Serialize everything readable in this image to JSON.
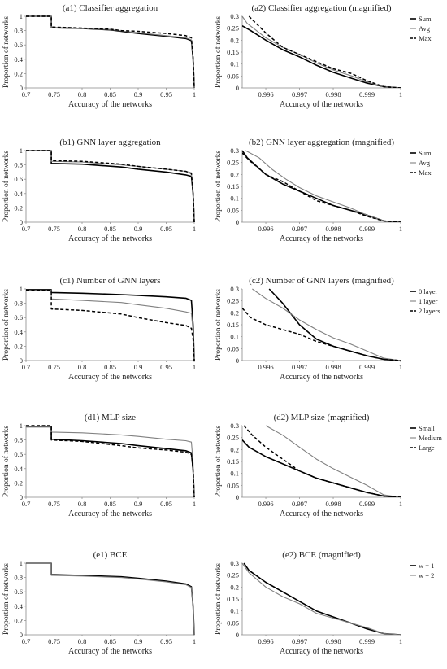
{
  "figure": {
    "x_label": "Accuracy of the networks",
    "y_label": "Proportion of networks"
  },
  "styles": {
    "series_colors": [
      "#000000",
      "#808080",
      "#000000"
    ],
    "series_dash": [
      "none",
      "none",
      "4 2.5"
    ],
    "series_widths": [
      1.6,
      1.1,
      1.5
    ]
  },
  "chart_data": [
    {
      "type": "line",
      "row": 0,
      "title": "(a1) Classifier aggregation",
      "legend": null,
      "xlim": [
        0.7,
        1
      ],
      "ylim": [
        0,
        1
      ],
      "xticks": [
        "0.7",
        "0.75",
        "0.8",
        "0.85",
        "0.9",
        "0.95",
        "1"
      ],
      "yticks": [
        "0",
        "0.2",
        "0.4",
        "0.6",
        "0.8",
        "1"
      ],
      "series": [
        {
          "x": [
            0.7,
            0.745,
            0.745,
            0.8,
            0.85,
            0.87,
            0.9,
            0.95,
            0.985,
            0.995,
            0.998,
            1.0
          ],
          "y": [
            1.0,
            1.0,
            0.84,
            0.83,
            0.81,
            0.79,
            0.76,
            0.72,
            0.69,
            0.66,
            0.4,
            0.0
          ]
        },
        {
          "x": [
            0.7,
            0.745,
            0.745,
            0.8,
            0.85,
            0.87,
            0.9,
            0.95,
            0.985,
            0.995,
            0.998,
            1.0
          ],
          "y": [
            1.0,
            1.0,
            0.84,
            0.83,
            0.815,
            0.795,
            0.77,
            0.73,
            0.7,
            0.67,
            0.4,
            0.0
          ]
        },
        {
          "x": [
            0.7,
            0.745,
            0.745,
            0.8,
            0.85,
            0.87,
            0.9,
            0.95,
            0.985,
            0.995,
            0.998,
            1.0
          ],
          "y": [
            1.0,
            1.0,
            0.85,
            0.835,
            0.82,
            0.8,
            0.79,
            0.76,
            0.73,
            0.7,
            0.42,
            0.0
          ]
        }
      ]
    },
    {
      "type": "line",
      "row": 0,
      "title": "(a2) Classifier aggregation (magnified)",
      "legend": [
        "Sum",
        "Avg",
        "Max"
      ],
      "xlim": [
        0.9953,
        1
      ],
      "ylim": [
        0,
        0.3
      ],
      "xticks": [
        "0.996",
        "0.997",
        "0.998",
        "0.999",
        "1"
      ],
      "yticks": [
        "0",
        "0.05",
        "0.1",
        "0.15",
        "0.2",
        "0.25",
        "0.3"
      ],
      "series": [
        {
          "x": [
            0.9953,
            0.99555,
            0.996,
            0.9965,
            0.997,
            0.9975,
            0.998,
            0.99855,
            0.999,
            0.9995,
            1.0
          ],
          "y": [
            0.26,
            0.24,
            0.2,
            0.16,
            0.13,
            0.095,
            0.065,
            0.04,
            0.02,
            0.005,
            0.0
          ]
        },
        {
          "x": [
            0.9953,
            0.99545,
            0.996,
            0.9965,
            0.997,
            0.9975,
            0.998,
            0.99855,
            0.999,
            0.9995,
            1.0
          ],
          "y": [
            0.3,
            0.27,
            0.21,
            0.17,
            0.14,
            0.105,
            0.075,
            0.05,
            0.025,
            0.005,
            0.0
          ]
        },
        {
          "x": [
            0.9955,
            0.996,
            0.9965,
            0.997,
            0.9975,
            0.998,
            0.99855,
            0.999,
            0.9995,
            1.0
          ],
          "y": [
            0.3,
            0.23,
            0.17,
            0.14,
            0.11,
            0.08,
            0.06,
            0.03,
            0.005,
            0.0
          ]
        }
      ]
    },
    {
      "type": "line",
      "row": 1,
      "title": "(b1) GNN layer aggregation",
      "legend": null,
      "xlim": [
        0.7,
        1
      ],
      "ylim": [
        0,
        1
      ],
      "xticks": [
        "0.7",
        "0.75",
        "0.8",
        "0.85",
        "0.9",
        "0.95",
        "1"
      ],
      "yticks": [
        "0",
        "0.2",
        "0.4",
        "0.6",
        "0.8",
        "1"
      ],
      "series": [
        {
          "x": [
            0.7,
            0.745,
            0.745,
            0.8,
            0.87,
            0.9,
            0.95,
            0.985,
            0.995,
            0.998,
            1.0
          ],
          "y": [
            1.0,
            1.0,
            0.82,
            0.81,
            0.77,
            0.74,
            0.7,
            0.66,
            0.64,
            0.4,
            0.0
          ]
        },
        {
          "x": [
            0.7,
            0.745,
            0.745,
            0.8,
            0.87,
            0.9,
            0.95,
            0.985,
            0.995,
            0.998,
            1.0
          ],
          "y": [
            1.0,
            1.0,
            0.85,
            0.84,
            0.8,
            0.78,
            0.74,
            0.71,
            0.69,
            0.42,
            0.0
          ]
        },
        {
          "x": [
            0.7,
            0.745,
            0.745,
            0.8,
            0.87,
            0.9,
            0.95,
            0.985,
            0.995,
            0.998,
            1.0
          ],
          "y": [
            1.0,
            1.0,
            0.86,
            0.85,
            0.81,
            0.78,
            0.74,
            0.71,
            0.68,
            0.41,
            0.0
          ]
        }
      ]
    },
    {
      "type": "line",
      "row": 1,
      "title": "(b2) GNN layer aggregation (magnified)",
      "legend": [
        "Sum",
        "Avg",
        "Max"
      ],
      "xlim": [
        0.9953,
        1
      ],
      "ylim": [
        0,
        0.3
      ],
      "xticks": [
        "0.996",
        "0.997",
        "0.998",
        "0.999",
        "1"
      ],
      "yticks": [
        "0",
        "0.05",
        "0.1",
        "0.15",
        "0.2",
        "0.25",
        "0.3"
      ],
      "series": [
        {
          "x": [
            0.9953,
            0.99545,
            0.996,
            0.9965,
            0.997,
            0.9975,
            0.998,
            0.9985,
            0.999,
            0.9995,
            1.0
          ],
          "y": [
            0.3,
            0.27,
            0.2,
            0.16,
            0.13,
            0.1,
            0.07,
            0.05,
            0.03,
            0.005,
            0.0
          ]
        },
        {
          "x": [
            0.9954,
            0.9958,
            0.9962,
            0.9966,
            0.997,
            0.9975,
            0.998,
            0.9985,
            0.999,
            0.9995,
            1.0
          ],
          "y": [
            0.3,
            0.27,
            0.22,
            0.18,
            0.145,
            0.11,
            0.085,
            0.06,
            0.03,
            0.005,
            0.0
          ]
        },
        {
          "x": [
            0.9953,
            0.9955,
            0.996,
            0.9965,
            0.997,
            0.9975,
            0.998,
            0.9985,
            0.999,
            0.9995,
            1.0
          ],
          "y": [
            0.29,
            0.26,
            0.2,
            0.17,
            0.13,
            0.09,
            0.07,
            0.05,
            0.025,
            0.005,
            0.0
          ]
        }
      ]
    },
    {
      "type": "line",
      "row": 2,
      "title": "(c1) Number of GNN layers",
      "legend": null,
      "xlim": [
        0.7,
        1
      ],
      "ylim": [
        0,
        1
      ],
      "xticks": [
        "0.7",
        "0.75",
        "0.8",
        "0.85",
        "0.9",
        "0.95",
        "1"
      ],
      "yticks": [
        "0",
        "0.2",
        "0.4",
        "0.6",
        "0.8",
        "1"
      ],
      "series": [
        {
          "x": [
            0.7,
            0.745,
            0.745,
            0.8,
            0.87,
            0.9,
            0.95,
            0.985,
            0.995,
            0.998,
            1.0
          ],
          "y": [
            0.99,
            0.99,
            0.95,
            0.94,
            0.92,
            0.91,
            0.89,
            0.87,
            0.84,
            0.5,
            0.0
          ]
        },
        {
          "x": [
            0.7,
            0.745,
            0.745,
            0.8,
            0.87,
            0.9,
            0.95,
            0.985,
            0.995,
            0.998,
            1.0
          ],
          "y": [
            0.98,
            0.98,
            0.86,
            0.84,
            0.81,
            0.78,
            0.73,
            0.68,
            0.66,
            0.4,
            0.0
          ]
        },
        {
          "x": [
            0.7,
            0.745,
            0.745,
            0.8,
            0.87,
            0.9,
            0.95,
            0.985,
            0.995,
            0.998,
            1.0
          ],
          "y": [
            0.98,
            0.98,
            0.72,
            0.7,
            0.65,
            0.6,
            0.53,
            0.49,
            0.45,
            0.3,
            0.0
          ]
        }
      ]
    },
    {
      "type": "line",
      "row": 2,
      "title": "(c2) Number of GNN layers (magnified)",
      "legend": [
        "0 layer",
        "1 layer",
        "2 layers"
      ],
      "xlim": [
        0.9953,
        1
      ],
      "ylim": [
        0,
        0.3
      ],
      "xticks": [
        "0.996",
        "0.997",
        "0.998",
        "0.999",
        "1"
      ],
      "yticks": [
        "0",
        "0.05",
        "0.1",
        "0.15",
        "0.2",
        "0.25",
        "0.3"
      ],
      "series": [
        {
          "x": [
            0.9961,
            0.9965,
            0.997,
            0.9975,
            0.998,
            0.9985,
            0.999,
            0.9995,
            1.0
          ],
          "y": [
            0.3,
            0.24,
            0.15,
            0.09,
            0.06,
            0.04,
            0.02,
            0.005,
            0.0
          ]
        },
        {
          "x": [
            0.9956,
            0.996,
            0.9965,
            0.997,
            0.9975,
            0.998,
            0.9985,
            0.999,
            0.9995,
            1.0
          ],
          "y": [
            0.3,
            0.26,
            0.22,
            0.17,
            0.13,
            0.095,
            0.07,
            0.04,
            0.01,
            0.0
          ]
        },
        {
          "x": [
            0.9953,
            0.99555,
            0.996,
            0.9965,
            0.997,
            0.9975,
            0.998,
            0.9985,
            0.999,
            0.9995,
            1.0
          ],
          "y": [
            0.22,
            0.18,
            0.15,
            0.13,
            0.11,
            0.08,
            0.06,
            0.04,
            0.02,
            0.005,
            0.0
          ]
        }
      ]
    },
    {
      "type": "line",
      "row": 3,
      "title": "(d1) MLP size",
      "legend": null,
      "xlim": [
        0.7,
        1
      ],
      "ylim": [
        0,
        1
      ],
      "xticks": [
        "0.7",
        "0.75",
        "0.8",
        "0.85",
        "0.9",
        "0.95",
        "1"
      ],
      "yticks": [
        "0",
        "0.2",
        "0.4",
        "0.6",
        "0.8",
        "1"
      ],
      "series": [
        {
          "x": [
            0.7,
            0.745,
            0.745,
            0.8,
            0.87,
            0.9,
            0.95,
            0.985,
            0.995,
            0.998,
            1.0
          ],
          "y": [
            0.99,
            0.99,
            0.81,
            0.79,
            0.75,
            0.72,
            0.68,
            0.65,
            0.62,
            0.38,
            0.0
          ]
        },
        {
          "x": [
            0.7,
            0.745,
            0.745,
            0.8,
            0.87,
            0.9,
            0.95,
            0.985,
            0.995,
            0.998,
            1.0
          ],
          "y": [
            0.98,
            0.98,
            0.91,
            0.9,
            0.87,
            0.85,
            0.81,
            0.79,
            0.77,
            0.48,
            0.0
          ]
        },
        {
          "x": [
            0.7,
            0.745,
            0.745,
            0.8,
            0.87,
            0.9,
            0.95,
            0.985,
            0.995,
            0.998,
            1.0
          ],
          "y": [
            1.0,
            1.0,
            0.8,
            0.78,
            0.72,
            0.69,
            0.66,
            0.63,
            0.6,
            0.38,
            0.0
          ]
        }
      ]
    },
    {
      "type": "line",
      "row": 3,
      "title": "(d2) MLP size (magnified)",
      "legend": [
        "Small",
        "Medium",
        "Large"
      ],
      "xlim": [
        0.9953,
        1
      ],
      "ylim": [
        0,
        0.3
      ],
      "xticks": [
        "0.996",
        "0.997",
        "0.998",
        "0.999",
        "1"
      ],
      "yticks": [
        "0",
        "0.05",
        "0.1",
        "0.15",
        "0.2",
        "0.25",
        "0.3"
      ],
      "series": [
        {
          "x": [
            0.9953,
            0.9955,
            0.996,
            0.9965,
            0.997,
            0.9975,
            0.998,
            0.9985,
            0.999,
            0.9995,
            1.0
          ],
          "y": [
            0.24,
            0.21,
            0.17,
            0.14,
            0.11,
            0.08,
            0.06,
            0.04,
            0.02,
            0.005,
            0.0
          ]
        },
        {
          "x": [
            0.996,
            0.9965,
            0.997,
            0.9975,
            0.998,
            0.9985,
            0.999,
            0.9995,
            1.0
          ],
          "y": [
            0.3,
            0.26,
            0.21,
            0.16,
            0.12,
            0.085,
            0.05,
            0.01,
            0.0
          ]
        },
        {
          "x": [
            0.99535,
            0.9956,
            0.996,
            0.9965,
            0.997,
            0.9975,
            0.998,
            0.9985,
            0.999,
            0.9995,
            1.0
          ],
          "y": [
            0.3,
            0.26,
            0.21,
            0.16,
            0.11,
            0.08,
            0.06,
            0.04,
            0.02,
            0.005,
            0.0
          ]
        }
      ]
    },
    {
      "type": "line",
      "row": 4,
      "title": "(e1) BCE",
      "legend": null,
      "xlim": [
        0.7,
        1
      ],
      "ylim": [
        0,
        1
      ],
      "xticks": [
        "0.7",
        "0.75",
        "0.8",
        "0.85",
        "0.9",
        "0.95",
        "1"
      ],
      "yticks": [
        "0",
        "0.2",
        "0.4",
        "0.6",
        "0.8",
        "1"
      ],
      "series": [
        {
          "x": [
            0.7,
            0.745,
            0.745,
            0.8,
            0.87,
            0.9,
            0.95,
            0.985,
            0.995,
            0.998,
            1.0
          ],
          "y": [
            1.0,
            1.0,
            0.84,
            0.83,
            0.81,
            0.79,
            0.75,
            0.71,
            0.67,
            0.4,
            0.0
          ]
        },
        {
          "x": [
            0.7,
            0.745,
            0.745,
            0.8,
            0.87,
            0.9,
            0.95,
            0.985,
            0.995,
            0.998,
            1.0
          ],
          "y": [
            1.0,
            1.0,
            0.83,
            0.82,
            0.8,
            0.78,
            0.74,
            0.7,
            0.66,
            0.4,
            0.0
          ]
        }
      ]
    },
    {
      "type": "line",
      "row": 4,
      "title": "(e2) BCE (magnified)",
      "legend": [
        "w = 1",
        "w = 2"
      ],
      "xlim": [
        0.9953,
        1
      ],
      "ylim": [
        0,
        0.3
      ],
      "xticks": [
        "0.996",
        "0.997",
        "0.998",
        "0.999",
        "1"
      ],
      "yticks": [
        "0",
        "0.05",
        "0.1",
        "0.15",
        "0.2",
        "0.25",
        "0.3"
      ],
      "series": [
        {
          "x": [
            0.99535,
            0.9955,
            0.996,
            0.9965,
            0.997,
            0.9975,
            0.998,
            0.9985,
            0.999,
            0.9995,
            1.0
          ],
          "y": [
            0.3,
            0.27,
            0.22,
            0.18,
            0.14,
            0.1,
            0.075,
            0.05,
            0.025,
            0.005,
            0.0
          ]
        },
        {
          "x": [
            0.9953,
            0.9955,
            0.996,
            0.9965,
            0.997,
            0.9975,
            0.998,
            0.9985,
            0.999,
            0.9995,
            1.0
          ],
          "y": [
            0.3,
            0.26,
            0.2,
            0.16,
            0.13,
            0.09,
            0.07,
            0.05,
            0.03,
            0.005,
            0.0
          ]
        }
      ]
    }
  ]
}
